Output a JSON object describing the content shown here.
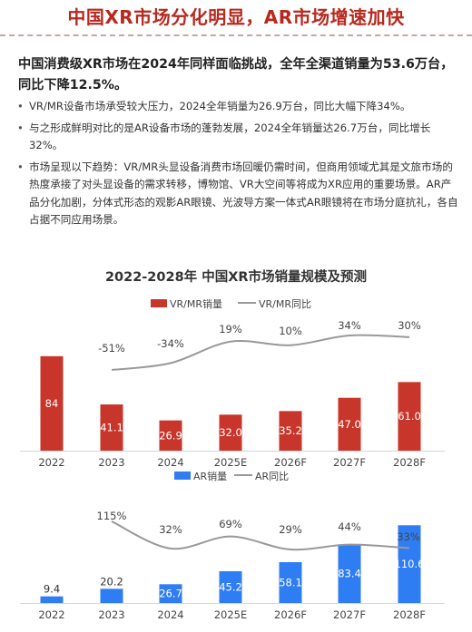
{
  "header": {
    "title": "中国XR市场分化明显，AR市场增速加快"
  },
  "summary": {
    "lead": "中国消费级XR市场在2024年同样面临挑战，全年全渠道销量为53.6万台，同比下降12.5%。",
    "bullets": [
      "VR/MR设备市场承受较大压力，2024全年销量为26.9万台，同比大幅下降34%。",
      "与之形成鲜明对比的是AR设备市场的蓬勃发展，2024全年销量达26.7万台，同比增长32%。",
      "市场呈现以下趋势：VR/MR头显设备消费市场回暖仍需时间，但商用领域尤其是文旅市场的热度承接了对头显设备的需求转移，博物馆、VR大空间等将成为XR应用的重要场景。AR产品分化加剧，分体式形态的观影AR眼镜、光波导方案一体式AR眼镜将在市场分庭抗礼，各自占据不同应用场景。"
    ]
  },
  "colors": {
    "vr": "#c8352a",
    "ar": "#2f7df2",
    "line": "#999999",
    "title_red": "#b8281e"
  },
  "chart_data": [
    {
      "type": "bar",
      "title": "2022-2028年 中国XR市场销量规模及预测",
      "categories": [
        "2022",
        "2023",
        "2024",
        "2025E",
        "2026F",
        "2027F",
        "2028F"
      ],
      "series": [
        {
          "name": "VR/MR销量",
          "type": "bar",
          "values": [
            84,
            41.1,
            26.9,
            32.0,
            35.2,
            47.0,
            61.0
          ],
          "value_labels": [
            "84",
            "41.1",
            "26.9",
            "32.0",
            "35.2",
            "47.0",
            "61.0"
          ]
        },
        {
          "name": "VR/MR同比",
          "type": "line",
          "values": [
            null,
            -51,
            -34,
            19,
            10,
            34,
            30
          ],
          "value_labels": [
            "",
            "-51%",
            "-34%",
            "19%",
            "10%",
            "34%",
            "30%"
          ]
        }
      ]
    },
    {
      "type": "bar",
      "categories": [
        "2022",
        "2023",
        "2024",
        "2025E",
        "2026F",
        "2027F",
        "2028F"
      ],
      "series": [
        {
          "name": "AR销量",
          "type": "bar",
          "values": [
            9.4,
            20.2,
            26.7,
            45.2,
            58.1,
            83.4,
            110.6
          ],
          "value_labels": [
            "9.4",
            "20.2",
            "26.7",
            "45.2",
            "58.1",
            "83.4",
            "110.6"
          ]
        },
        {
          "name": "AR同比",
          "type": "line",
          "values": [
            null,
            115,
            32,
            69,
            29,
            44,
            33
          ],
          "value_labels": [
            "",
            "115%",
            "32%",
            "69%",
            "29%",
            "44%",
            "33%"
          ]
        }
      ]
    }
  ]
}
